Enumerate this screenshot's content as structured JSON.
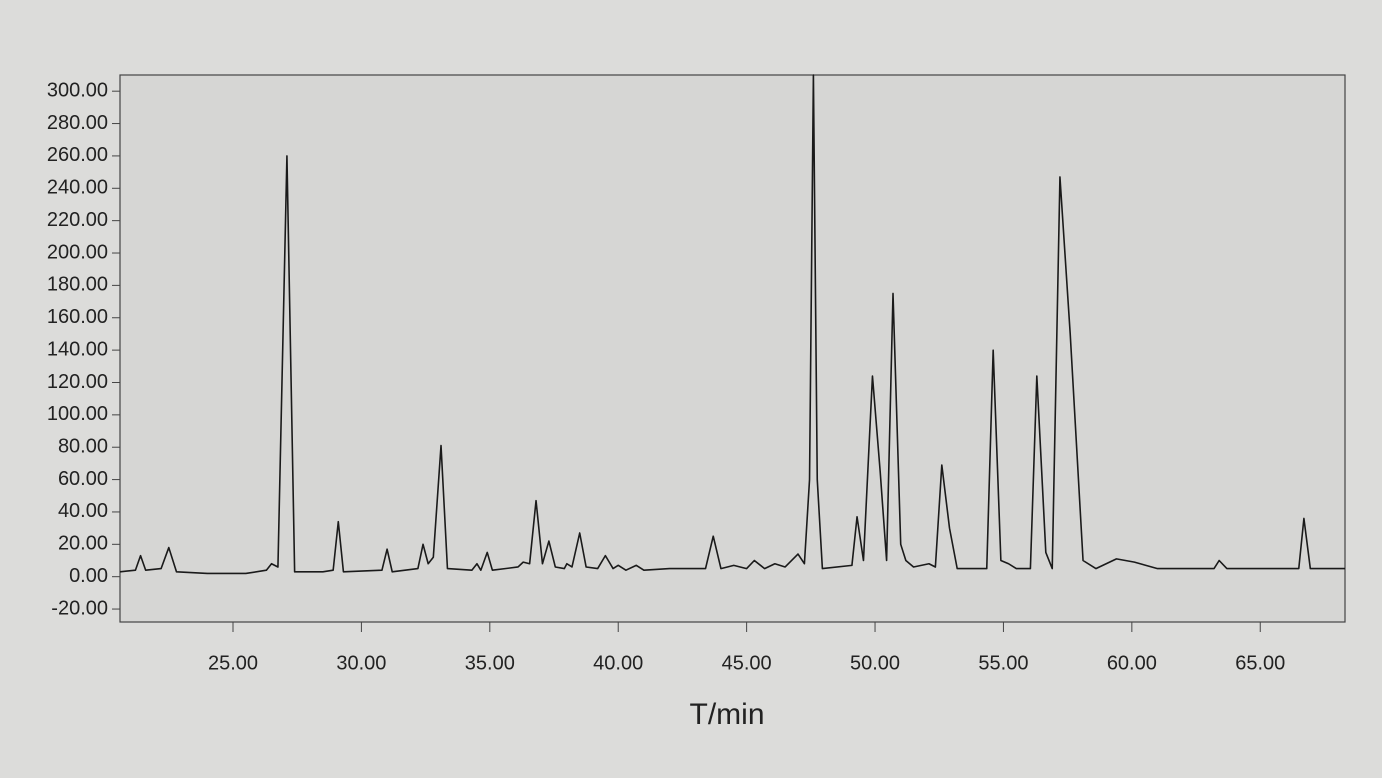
{
  "chart_data": {
    "type": "line",
    "xlabel": "T/min",
    "color": "#1a1a1a",
    "x": [
      20.6,
      21.2,
      21.4,
      21.6,
      22.2,
      22.5,
      22.8,
      24,
      25.5,
      26.3,
      26.5,
      26.75,
      27.1,
      27.4,
      28.5,
      28.9,
      29.1,
      29.3,
      30.8,
      31.0,
      31.2,
      32.2,
      32.4,
      32.6,
      32.8,
      33.1,
      33.35,
      34.3,
      34.5,
      34.65,
      34.9,
      35.1,
      36.1,
      36.3,
      36.55,
      36.8,
      37.05,
      37.3,
      37.55,
      37.9,
      38.0,
      38.2,
      38.5,
      38.75,
      39.2,
      39.5,
      39.8,
      40.0,
      40.3,
      40.7,
      41.0,
      42.0,
      43.4,
      43.7,
      44.0,
      44.5,
      45.0,
      45.3,
      45.7,
      46.1,
      46.5,
      47.0,
      47.25,
      47.45,
      47.6,
      47.75,
      47.95,
      49.1,
      49.3,
      49.55,
      49.9,
      50.2,
      50.45,
      50.7,
      51.0,
      51.2,
      51.5,
      52.1,
      52.35,
      52.6,
      52.9,
      53.2,
      54.35,
      54.6,
      54.9,
      55.2,
      55.5,
      56.05,
      56.3,
      56.65,
      56.9,
      57.2,
      57.6,
      58.1,
      58.6,
      59.4,
      60.1,
      61,
      63.2,
      63.4,
      63.7,
      66.5,
      66.7,
      66.95,
      68.3
    ],
    "values": [
      3,
      4,
      13,
      4,
      5,
      18,
      3,
      2,
      2,
      4,
      8,
      6,
      260,
      3,
      3,
      4,
      34,
      3,
      4,
      17,
      3,
      5,
      20,
      8,
      12,
      81,
      5,
      4,
      8,
      4,
      15,
      4,
      6,
      9,
      8,
      47,
      8,
      22,
      6,
      5,
      8,
      6,
      27,
      6,
      5,
      13,
      5,
      7,
      4,
      7,
      4,
      5,
      5,
      25,
      5,
      7,
      5,
      10,
      5,
      8,
      6,
      14,
      8,
      60,
      310,
      60,
      5,
      7,
      37,
      10,
      124,
      65,
      10,
      175,
      20,
      10,
      6,
      8,
      6,
      69,
      30,
      5,
      5,
      140,
      10,
      8,
      5,
      5,
      124,
      15,
      5,
      247,
      150,
      10,
      5,
      11,
      9,
      5,
      5,
      10,
      5,
      5,
      36,
      5,
      5
    ],
    "xlim": [
      20.6,
      68.3
    ],
    "ylim": [
      -28,
      310
    ],
    "xticks": [
      {
        "value": 25,
        "label": "25.00"
      },
      {
        "value": 30,
        "label": "30.00"
      },
      {
        "value": 35,
        "label": "35.00"
      },
      {
        "value": 40,
        "label": "40.00"
      },
      {
        "value": 45,
        "label": "45.00"
      },
      {
        "value": 50,
        "label": "50.00"
      },
      {
        "value": 55,
        "label": "55.00"
      },
      {
        "value": 60,
        "label": "60.00"
      },
      {
        "value": 65,
        "label": "65.00"
      }
    ],
    "yticks": [
      {
        "value": -20,
        "label": "-20.00"
      },
      {
        "value": 0,
        "label": "0.00"
      },
      {
        "value": 20,
        "label": "20.00"
      },
      {
        "value": 40,
        "label": "40.00"
      },
      {
        "value": 60,
        "label": "60.00"
      },
      {
        "value": 80,
        "label": "80.00"
      },
      {
        "value": 100,
        "label": "100.00"
      },
      {
        "value": 120,
        "label": "120.00"
      },
      {
        "value": 140,
        "label": "140.00"
      },
      {
        "value": 160,
        "label": "160.00"
      },
      {
        "value": 180,
        "label": "180.00"
      },
      {
        "value": 200,
        "label": "200.00"
      },
      {
        "value": 220,
        "label": "220.00"
      },
      {
        "value": 240,
        "label": "240.00"
      },
      {
        "value": 260,
        "label": "260.00"
      },
      {
        "value": 280,
        "label": "280.00"
      },
      {
        "value": 300,
        "label": "300.00"
      }
    ]
  }
}
